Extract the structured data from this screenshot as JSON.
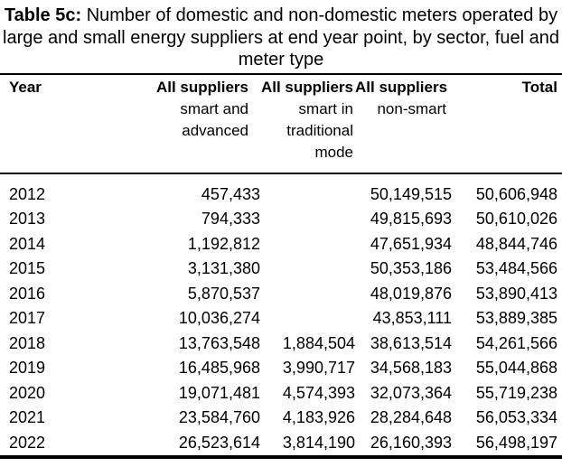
{
  "title": {
    "bold_prefix": "Table 5c:",
    "line1_rest": " Number of domestic and non-domestic meters operated by",
    "line2": "large and small energy suppliers at end year point, by sector, fuel and",
    "line3": "meter type"
  },
  "table": {
    "header": {
      "columns": [
        {
          "label": "Year",
          "sublines": []
        },
        {
          "label": "All suppliers",
          "sublines": [
            "smart and",
            "advanced"
          ]
        },
        {
          "label": "All suppliers",
          "sublines": [
            "smart in",
            "traditional",
            "mode"
          ]
        },
        {
          "label": "All suppliers",
          "sublines": [
            "non-smart"
          ]
        },
        {
          "label": "Total",
          "sublines": []
        }
      ]
    },
    "row_keys": [
      "year",
      "smart_advanced",
      "smart_traditional",
      "non_smart",
      "total"
    ],
    "rows": [
      {
        "year": "2012",
        "smart_advanced": "457,433",
        "smart_traditional": "",
        "non_smart": "50,149,515",
        "total": "50,606,948"
      },
      {
        "year": "2013",
        "smart_advanced": "794,333",
        "smart_traditional": "",
        "non_smart": "49,815,693",
        "total": "50,610,026"
      },
      {
        "year": "2014",
        "smart_advanced": "1,192,812",
        "smart_traditional": "",
        "non_smart": "47,651,934",
        "total": "48,844,746"
      },
      {
        "year": "2015",
        "smart_advanced": "3,131,380",
        "smart_traditional": "",
        "non_smart": "50,353,186",
        "total": "53,484,566"
      },
      {
        "year": "2016",
        "smart_advanced": "5,870,537",
        "smart_traditional": "",
        "non_smart": "48,019,876",
        "total": "53,890,413"
      },
      {
        "year": "2017",
        "smart_advanced": "10,036,274",
        "smart_traditional": "",
        "non_smart": "43,853,111",
        "total": "53,889,385"
      },
      {
        "year": "2018",
        "smart_advanced": "13,763,548",
        "smart_traditional": "1,884,504",
        "non_smart": "38,613,514",
        "total": "54,261,566"
      },
      {
        "year": "2019",
        "smart_advanced": "16,485,968",
        "smart_traditional": "3,990,717",
        "non_smart": "34,568,183",
        "total": "55,044,868"
      },
      {
        "year": "2020",
        "smart_advanced": "19,071,481",
        "smart_traditional": "4,574,393",
        "non_smart": "32,073,364",
        "total": "55,719,238"
      },
      {
        "year": "2021",
        "smart_advanced": "23,584,760",
        "smart_traditional": "4,183,926",
        "non_smart": "28,284,648",
        "total": "56,053,334"
      },
      {
        "year": "2022",
        "smart_advanced": "26,523,614",
        "smart_traditional": "3,814,190",
        "non_smart": "26,160,393",
        "total": "56,498,197"
      }
    ]
  },
  "colors": {
    "text": "#000000",
    "background": "#ffffff",
    "rule": "#000000"
  }
}
